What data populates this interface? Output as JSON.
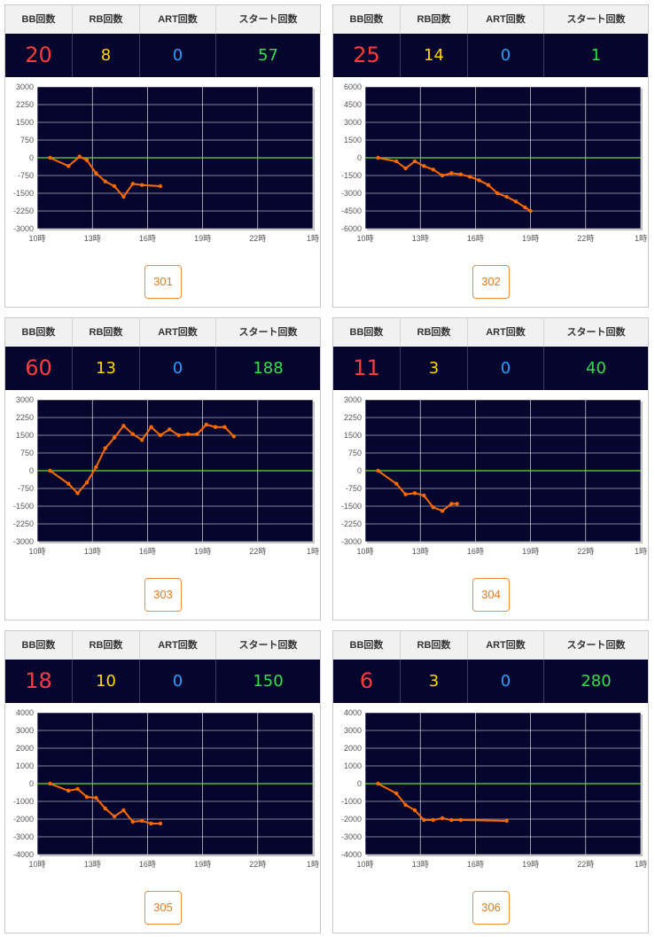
{
  "headers": {
    "bb": "BB回数",
    "rb": "RB回数",
    "art": "ART回数",
    "start": "スタート回数"
  },
  "x_tick_labels": [
    "10時",
    "13時",
    "16時",
    "19時",
    "22時",
    "1時"
  ],
  "colors": {
    "plot_bg": "#05052e",
    "line": "#ff6a00",
    "zero_line": "#66dd33",
    "grid": "#ffffff"
  },
  "machines": [
    {
      "number": "301",
      "bb": "20",
      "rb": "8",
      "art": "0",
      "start": "57"
    },
    {
      "number": "302",
      "bb": "25",
      "rb": "14",
      "art": "0",
      "start": "1"
    },
    {
      "number": "303",
      "bb": "60",
      "rb": "13",
      "art": "0",
      "start": "188"
    },
    {
      "number": "304",
      "bb": "11",
      "rb": "3",
      "art": "0",
      "start": "40"
    },
    {
      "number": "305",
      "bb": "18",
      "rb": "10",
      "art": "0",
      "start": "150"
    },
    {
      "number": "306",
      "bb": "6",
      "rb": "3",
      "art": "0",
      "start": "280"
    }
  ],
  "chart_data": [
    {
      "type": "line",
      "x_unit": "hour",
      "xlim": [
        10,
        25
      ],
      "ylim": [
        -3000,
        3000
      ],
      "yticks": [
        "3000",
        "2250",
        "1500",
        "750",
        "0",
        "-750",
        "-1500",
        "-2250",
        "-3000"
      ],
      "x": [
        10.7,
        11.7,
        12.3,
        12.7,
        13.2,
        13.7,
        14.2,
        14.7,
        15.2,
        15.7,
        16.7
      ],
      "y": [
        0,
        -350,
        50,
        -100,
        -650,
        -1000,
        -1200,
        -1650,
        -1100,
        -1150,
        -1200
      ]
    },
    {
      "type": "line",
      "x_unit": "hour",
      "xlim": [
        10,
        25
      ],
      "ylim": [
        -6000,
        6000
      ],
      "yticks": [
        "6000",
        "4500",
        "3000",
        "1500",
        "0",
        "-1500",
        "-3000",
        "-4500",
        "-6000"
      ],
      "x": [
        10.7,
        11.7,
        12.2,
        12.7,
        13.2,
        13.7,
        14.2,
        14.7,
        15.2,
        15.7,
        16.2,
        16.7,
        17.2,
        17.7,
        18.2,
        18.7,
        19.0
      ],
      "y": [
        0,
        -300,
        -900,
        -300,
        -700,
        -1000,
        -1500,
        -1300,
        -1400,
        -1600,
        -1900,
        -2300,
        -3000,
        -3300,
        -3700,
        -4200,
        -4500
      ]
    },
    {
      "type": "line",
      "x_unit": "hour",
      "xlim": [
        10,
        25
      ],
      "ylim": [
        -3000,
        3000
      ],
      "yticks": [
        "3000",
        "2250",
        "1500",
        "750",
        "0",
        "-750",
        "-1500",
        "-2250",
        "-3000"
      ],
      "x": [
        10.7,
        11.7,
        12.2,
        12.7,
        13.2,
        13.7,
        14.2,
        14.7,
        15.2,
        15.7,
        16.2,
        16.7,
        17.2,
        17.7,
        18.2,
        18.7,
        19.2,
        19.7,
        20.2,
        20.7
      ],
      "y": [
        0,
        -550,
        -950,
        -500,
        150,
        950,
        1400,
        1900,
        1550,
        1300,
        1850,
        1500,
        1750,
        1500,
        1550,
        1550,
        1950,
        1850,
        1850,
        1450
      ]
    },
    {
      "type": "line",
      "x_unit": "hour",
      "xlim": [
        10,
        25
      ],
      "ylim": [
        -3000,
        3000
      ],
      "yticks": [
        "3000",
        "2250",
        "1500",
        "750",
        "0",
        "-750",
        "-1500",
        "-2250",
        "-3000"
      ],
      "x": [
        10.7,
        11.7,
        12.2,
        12.7,
        13.2,
        13.7,
        14.2,
        14.7,
        15.0
      ],
      "y": [
        0,
        -550,
        -1000,
        -950,
        -1050,
        -1550,
        -1700,
        -1400,
        -1400
      ]
    },
    {
      "type": "line",
      "x_unit": "hour",
      "xlim": [
        10,
        25
      ],
      "ylim": [
        -4000,
        4000
      ],
      "yticks": [
        "4000",
        "3000",
        "2000",
        "1000",
        "0",
        "-1000",
        "-2000",
        "-3000",
        "-4000"
      ],
      "x": [
        10.7,
        11.7,
        12.2,
        12.7,
        13.2,
        13.7,
        14.2,
        14.7,
        15.2,
        15.7,
        16.2,
        16.7
      ],
      "y": [
        0,
        -400,
        -300,
        -750,
        -800,
        -1400,
        -1850,
        -1500,
        -2150,
        -2100,
        -2250,
        -2250
      ]
    },
    {
      "type": "line",
      "x_unit": "hour",
      "xlim": [
        10,
        25
      ],
      "ylim": [
        -4000,
        4000
      ],
      "yticks": [
        "4000",
        "3000",
        "2000",
        "1000",
        "0",
        "-1000",
        "-2000",
        "-3000",
        "-4000"
      ],
      "x": [
        10.7,
        11.7,
        12.2,
        12.7,
        13.2,
        13.7,
        14.2,
        14.7,
        15.2,
        17.7
      ],
      "y": [
        0,
        -550,
        -1200,
        -1500,
        -2050,
        -2050,
        -1950,
        -2050,
        -2050,
        -2100
      ]
    }
  ]
}
